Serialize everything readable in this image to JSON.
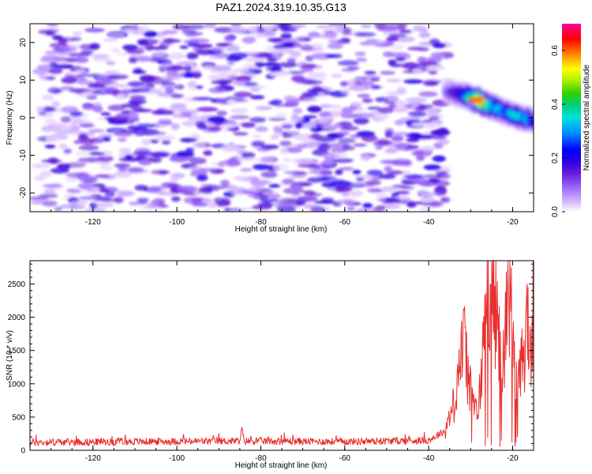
{
  "title": "PAZ1.2024.319.10.35.G13",
  "chart_data": [
    {
      "type": "heatmap",
      "xlabel": "Height of straight line (km)",
      "ylabel": "Frequency (Hz)",
      "xlim": [
        -135,
        -15
      ],
      "ylim": [
        -25,
        25
      ],
      "xticks": [
        "-120",
        "-100",
        "-80",
        "-60",
        "-40",
        "-20"
      ],
      "yticks": [
        "-20",
        "-10",
        "0",
        "10",
        "20"
      ],
      "colorbar": {
        "label": "Normalized spectral amplitude",
        "range": [
          0.0,
          0.7
        ],
        "ticks": [
          "0.0",
          "0.2",
          "0.4",
          "0.6"
        ],
        "colormap": [
          "#ffffff",
          "#e0c8ff",
          "#a070ff",
          "#6a1fd8",
          "#2a00e0",
          "#0000ff",
          "#0090ff",
          "#00e0e0",
          "#00d070",
          "#30d000",
          "#b0f000",
          "#ffff00",
          "#ff8000",
          "#ff0000",
          "#ff00a0"
        ]
      },
      "noise_region": {
        "x": [
          -133,
          -36
        ],
        "y": [
          -25,
          25
        ],
        "level": [
          0.0,
          0.1
        ]
      },
      "signal_trace": {
        "x": [
          -36,
          -32,
          -28,
          -25,
          -22,
          -19,
          -16,
          -15
        ],
        "y": [
          7,
          6,
          4.5,
          3,
          1.5,
          0.5,
          -0.5,
          -1
        ],
        "amplitude": [
          0.12,
          0.25,
          0.65,
          0.35,
          0.3,
          0.35,
          0.3,
          0.2
        ]
      }
    },
    {
      "type": "line",
      "xlabel": "Height of straight line (km)",
      "ylabel": "SNR (10 * v/v)",
      "xlim": [
        -135,
        -15
      ],
      "ylim": [
        0,
        2850
      ],
      "xticks": [
        "-120",
        "-100",
        "-80",
        "-60",
        "-40",
        "-20"
      ],
      "yticks": [
        "0",
        "500",
        "1000",
        "1500",
        "2000",
        "2500"
      ],
      "color": "#e83030",
      "series": [
        {
          "x": [
            -135,
            -110,
            -85,
            -84.5,
            -84,
            -60,
            -40,
            -36,
            -34,
            -33,
            -32,
            -31.5,
            -31,
            -30,
            -29,
            -28.5,
            -28,
            -27,
            -26,
            -25.5,
            -25,
            -24.5,
            -24,
            -23,
            -22,
            -21.5,
            -21,
            -20.5,
            -20,
            -19,
            -18,
            -17,
            -16.5,
            -16,
            -15.5,
            -15
          ],
          "y": [
            120,
            130,
            140,
            330,
            140,
            130,
            150,
            300,
            700,
            1200,
            1550,
            1580,
            1300,
            900,
            600,
            550,
            700,
            1600,
            2200,
            2620,
            2820,
            2400,
            2100,
            1500,
            1300,
            2200,
            2750,
            2300,
            1500,
            900,
            1200,
            1600,
            2000,
            1600,
            1400,
            2200
          ]
        }
      ]
    }
  ]
}
